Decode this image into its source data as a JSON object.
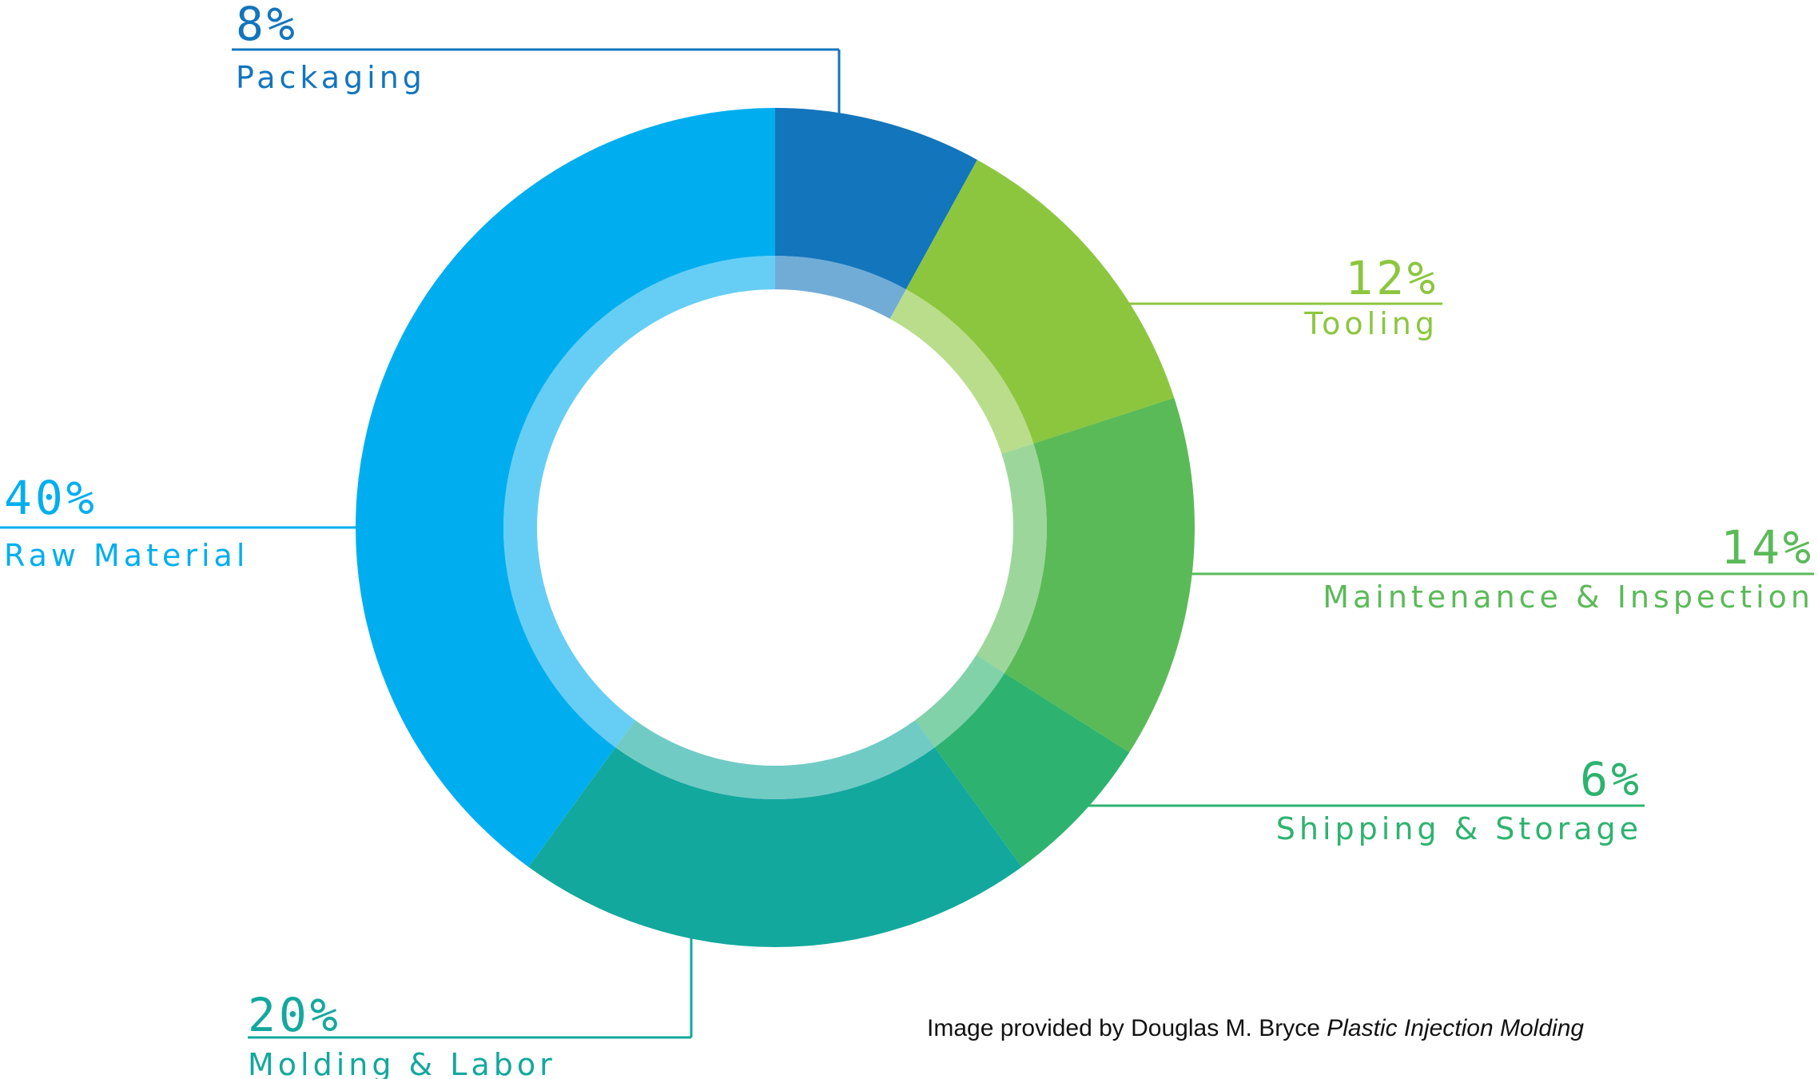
{
  "chart_data": {
    "type": "pie",
    "variant": "donut",
    "unit": "%",
    "slices": [
      {
        "label": "Packaging",
        "value": 8,
        "value_label": "8%",
        "color": "#1375bc"
      },
      {
        "label": "Tooling",
        "value": 12,
        "value_label": "12%",
        "color": "#8cc63f"
      },
      {
        "label": "Maintenance & Inspection",
        "value": 14,
        "value_label": "14%",
        "color": "#5bba58"
      },
      {
        "label": "Shipping & Storage",
        "value": 6,
        "value_label": "6%",
        "color": "#2db36f"
      },
      {
        "label": "Molding & Labor",
        "value": 20,
        "value_label": "20%",
        "color": "#13a89e"
      },
      {
        "label": "Raw Material",
        "value": 40,
        "value_label": "40%",
        "color": "#00aeef"
      }
    ],
    "start_angle": "12 o'clock",
    "direction": "clockwise",
    "legend": "none"
  },
  "credit": {
    "prefix": "Image provided by Douglas M. Bryce ",
    "title": "Plastic Injection Molding"
  }
}
